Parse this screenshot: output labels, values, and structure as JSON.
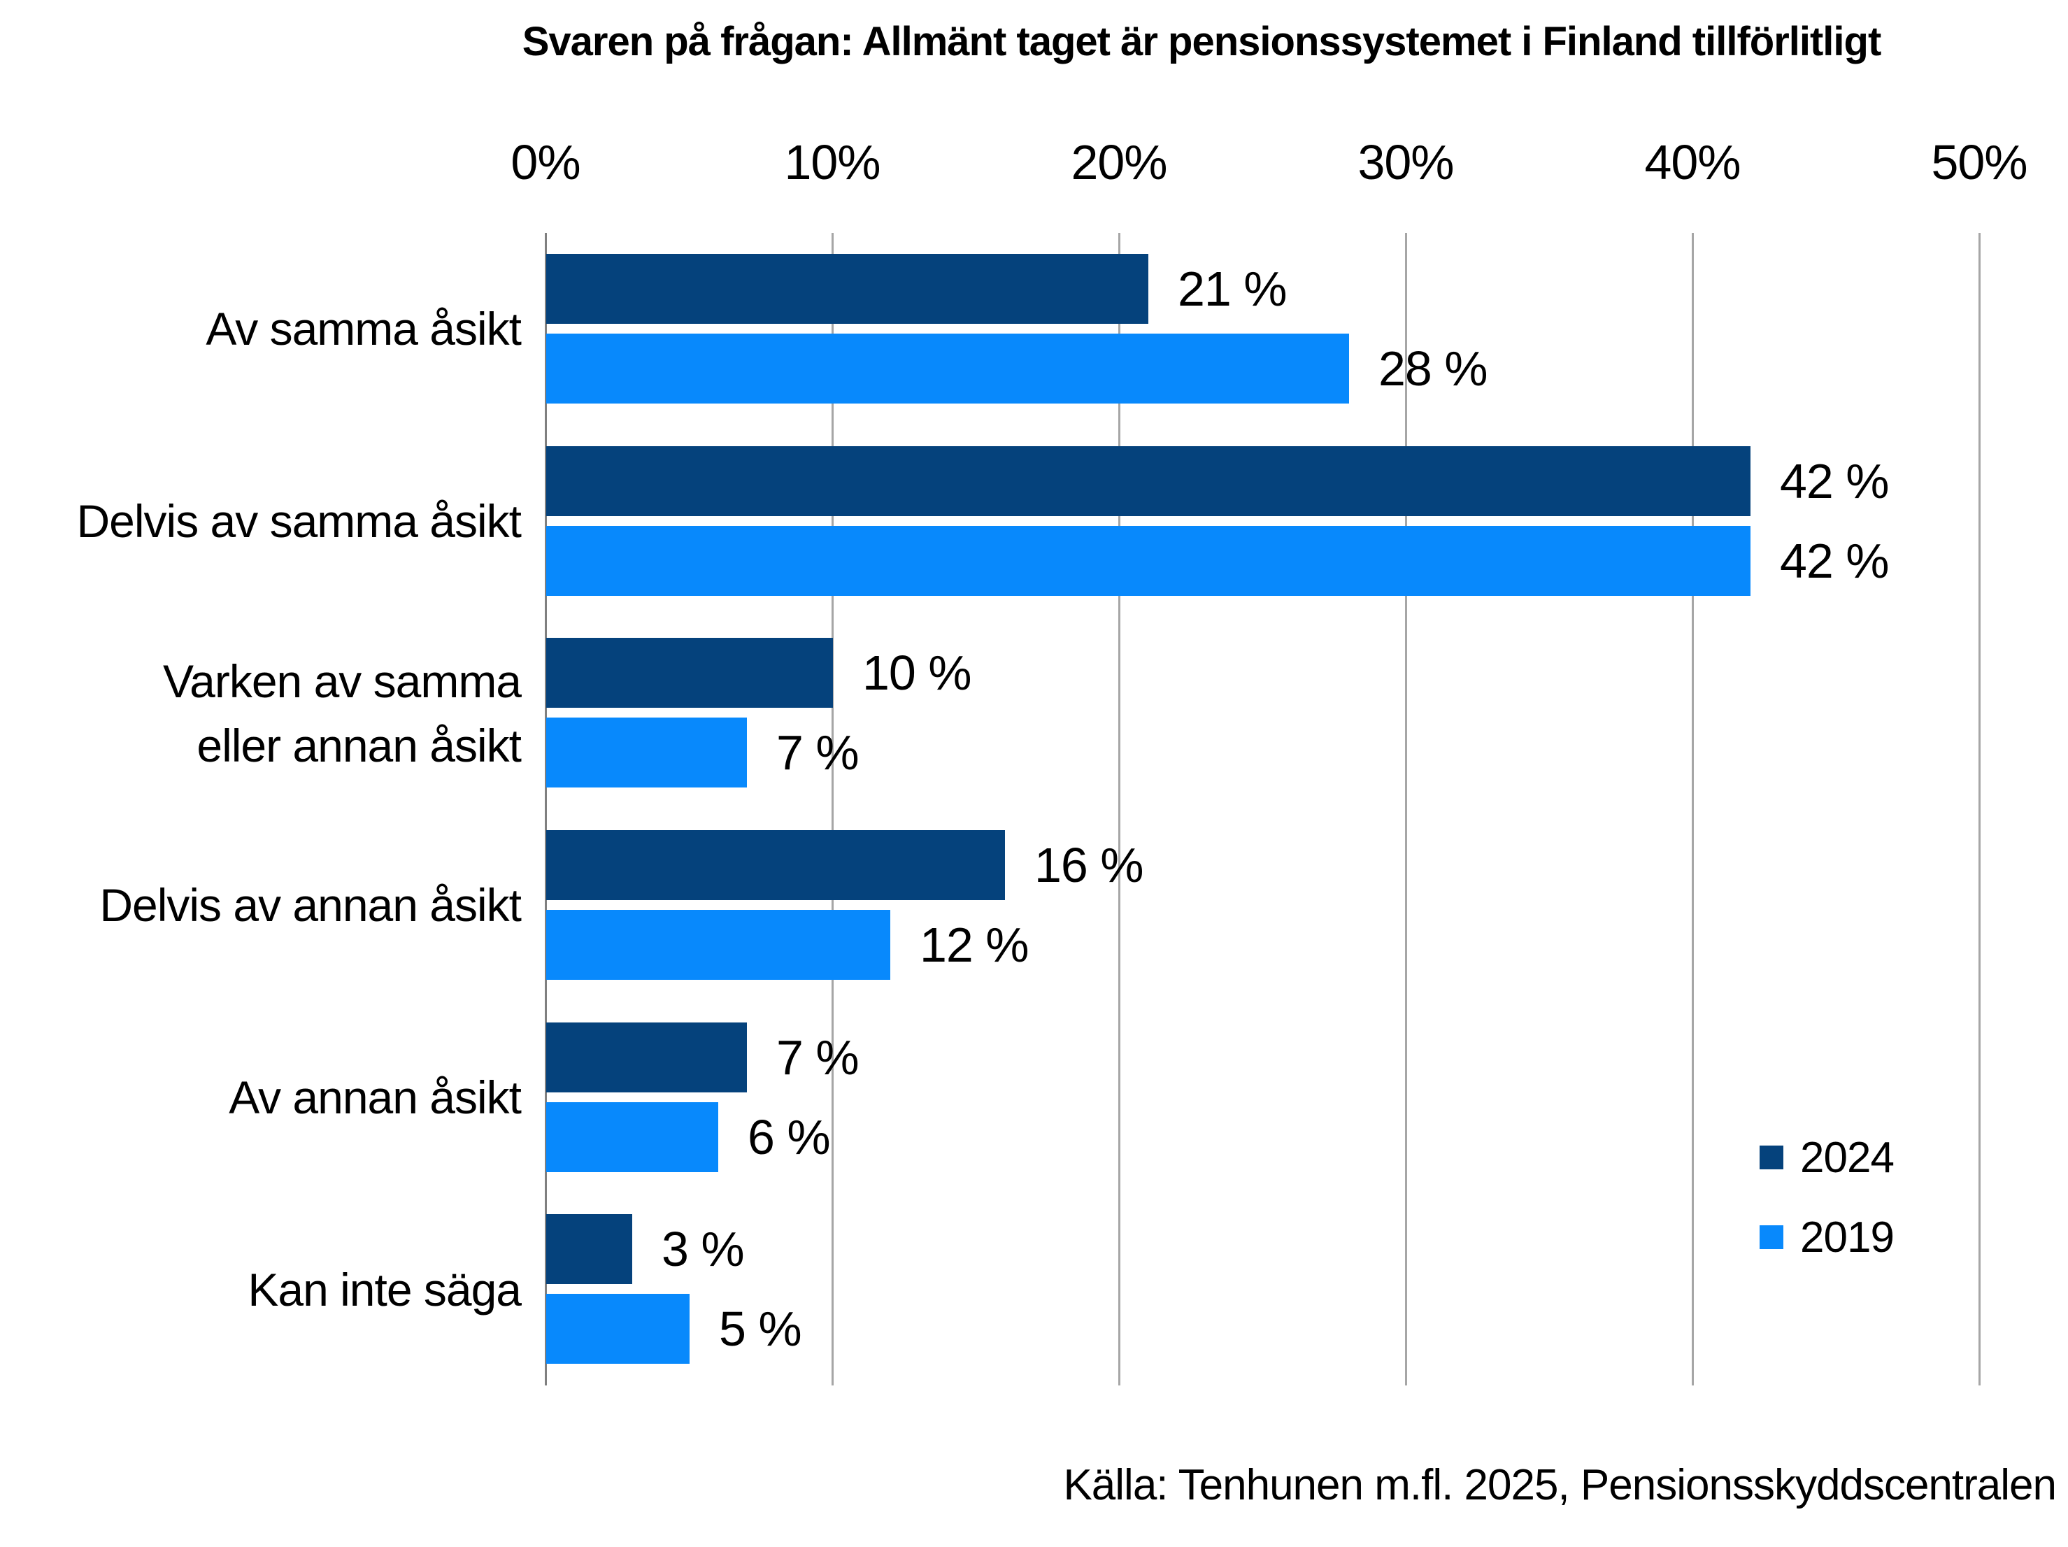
{
  "title": "Svaren på frågan: Allmänt taget är pensionssystemet i Finland tillförlitligt",
  "source": "Källa: Tenhunen m.fl. 2025, Pensionsskyddscentralen",
  "axis": {
    "ticks": [
      "0%",
      "10%",
      "20%",
      "30%",
      "40%",
      "50%"
    ],
    "min": 0,
    "max": 50
  },
  "legend": {
    "position": "right-bottom",
    "items": [
      {
        "label": "2024",
        "color": "#05427c"
      },
      {
        "label": "2019",
        "color": "#0889fc"
      }
    ]
  },
  "colors": {
    "series_2024": "#05427c",
    "series_2019": "#0889fc",
    "gridline": "#a6a6a6",
    "axis_line": "#808080",
    "background": "#ffffff",
    "text": "#000000"
  },
  "chart_data": {
    "type": "bar",
    "orientation": "horizontal",
    "title": "Svaren på frågan: Allmänt taget är pensionssystemet i Finland tillförlitligt",
    "categories": [
      "Av samma åsikt",
      "Delvis av samma åsikt",
      "Varken av samma\neller annan åsikt",
      "Delvis av annan åsikt",
      "Av annan åsikt",
      "Kan inte säga"
    ],
    "series": [
      {
        "name": "2024",
        "color": "#05427c",
        "values": [
          21,
          42,
          10,
          16,
          7,
          3
        ],
        "labels": [
          "21 %",
          "42 %",
          "10 %",
          "16 %",
          "7 %",
          "3 %"
        ]
      },
      {
        "name": "2019",
        "color": "#0889fc",
        "values": [
          28,
          42,
          7,
          12,
          6,
          5
        ],
        "labels": [
          "28 %",
          "42 %",
          "7 %",
          "12 %",
          "6 %",
          "5 %"
        ]
      }
    ],
    "xlabel": "",
    "ylabel": "",
    "xlim": [
      0,
      50
    ],
    "xtick_format": "percent",
    "grid": true,
    "value_labels_shown": true,
    "legend_position": "right-bottom",
    "source": "Källa: Tenhunen m.fl. 2025, Pensionsskyddscentralen"
  }
}
